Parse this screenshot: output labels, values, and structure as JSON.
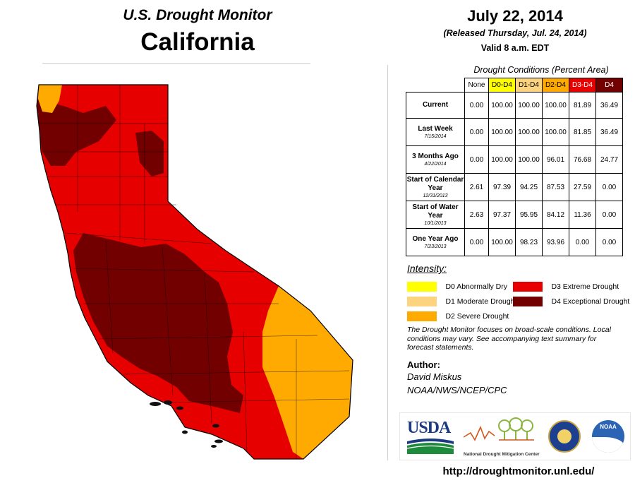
{
  "header": {
    "map_title": "U.S. Drought Monitor",
    "state": "California",
    "date": "July 22, 2014",
    "released": "(Released Thursday, Jul. 24, 2014)",
    "valid": "Valid 8 a.m. EDT"
  },
  "table": {
    "caption": "Drought Conditions (Percent Area)",
    "columns": [
      {
        "label": "None",
        "color": "#ffffff",
        "text_color": "#000000"
      },
      {
        "label": "D0-D4",
        "color": "#ffff00",
        "text_color": "#000000"
      },
      {
        "label": "D1-D4",
        "color": "#fcd37f",
        "text_color": "#000000"
      },
      {
        "label": "D2-D4",
        "color": "#ffaa00",
        "text_color": "#000000"
      },
      {
        "label": "D3-D4",
        "color": "#e60000",
        "text_color": "#ffffff"
      },
      {
        "label": "D4",
        "color": "#730000",
        "text_color": "#ffffff"
      }
    ],
    "rows": [
      {
        "label": "Current",
        "date": "",
        "values": [
          "0.00",
          "100.00",
          "100.00",
          "100.00",
          "81.89",
          "36.49"
        ]
      },
      {
        "label": "Last Week",
        "date": "7/15/2014",
        "values": [
          "0.00",
          "100.00",
          "100.00",
          "100.00",
          "81.85",
          "36.49"
        ]
      },
      {
        "label": "3 Months Ago",
        "date": "4/22/2014",
        "values": [
          "0.00",
          "100.00",
          "100.00",
          "96.01",
          "76.68",
          "24.77"
        ]
      },
      {
        "label": "Start of Calendar Year",
        "date": "12/31/2013",
        "values": [
          "2.61",
          "97.39",
          "94.25",
          "87.53",
          "27.59",
          "0.00"
        ]
      },
      {
        "label": "Start of Water Year",
        "date": "10/1/2013",
        "values": [
          "2.63",
          "97.37",
          "95.95",
          "84.12",
          "11.36",
          "0.00"
        ]
      },
      {
        "label": "One Year Ago",
        "date": "7/23/2013",
        "values": [
          "0.00",
          "100.00",
          "98.23",
          "93.96",
          "0.00",
          "0.00"
        ]
      }
    ]
  },
  "legend": {
    "title": "Intensity:",
    "items": [
      {
        "label": "D0 Abnormally Dry",
        "color": "#ffff00"
      },
      {
        "label": "D1 Moderate Drought",
        "color": "#fcd37f"
      },
      {
        "label": "D2 Severe Drought",
        "color": "#ffaa00"
      },
      {
        "label": "D3 Extreme Drought",
        "color": "#e60000"
      },
      {
        "label": "D4 Exceptional Drought",
        "color": "#730000"
      }
    ]
  },
  "note": "The Drought Monitor focuses on broad-scale conditions. Local conditions may vary. See accompanying text summary for forecast statements.",
  "author": {
    "heading": "Author:",
    "name": "David Miskus",
    "org": "NOAA/NWS/NCEP/CPC"
  },
  "logos": {
    "usda": "USDA",
    "ndmc": "National Drought Mitigation Center",
    "noaa": "NOAA"
  },
  "url": "http://droughtmonitor.unl.edu/"
}
